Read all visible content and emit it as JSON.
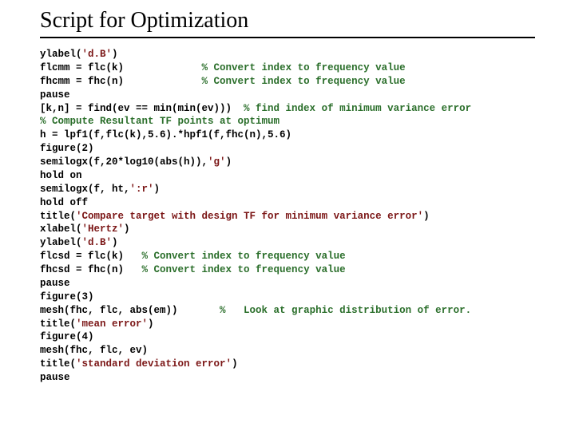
{
  "title": "Script for Optimization",
  "code": {
    "l01a": "ylabel(",
    "l01s": "'d.B'",
    "l01b": ")",
    "l02a": "flcmm = flc(k)             ",
    "l02c": "% Convert index to frequency value",
    "l03a": "fhcmm = fhc(n)             ",
    "l03c": "% Convert index to frequency value",
    "l04": "pause",
    "l05a": "[k,n] = find(ev == min(min(ev)))  ",
    "l05c": "% find index of minimum variance error",
    "l06c": "% Compute Resultant TF points at optimum",
    "l07": "h = lpf1(f,flc(k),5.6).*hpf1(f,fhc(n),5.6)",
    "l08": "figure(2)",
    "l09a": "semilogx(f,20*log10(abs(h)),",
    "l09s": "'g'",
    "l09b": ")",
    "l10": "hold on",
    "l11a": "semilogx(f, ht,",
    "l11s": "':r'",
    "l11b": ")",
    "l12": "hold off",
    "l13a": "title(",
    "l13s": "'Compare target with design TF for minimum variance error'",
    "l13b": ")",
    "l14a": "xlabel(",
    "l14s": "'Hertz'",
    "l14b": ")",
    "l15a": "ylabel(",
    "l15s": "'d.B'",
    "l15b": ")",
    "l16a": "flcsd = flc(k)   ",
    "l16c": "% Convert index to frequency value",
    "l17a": "fhcsd = fhc(n)   ",
    "l17c": "% Convert index to frequency value",
    "l18": "pause",
    "l19": "figure(3)",
    "l20a": "mesh(fhc, flc, abs(em))       ",
    "l20c": "%   Look at graphic distribution of error.",
    "l21a": "title(",
    "l21s": "'mean error'",
    "l21b": ")",
    "l22": "figure(4)",
    "l23": "mesh(fhc, flc, ev)",
    "l24a": "title(",
    "l24s": "'standard deviation error'",
    "l24b": ")",
    "l25": "pause"
  }
}
